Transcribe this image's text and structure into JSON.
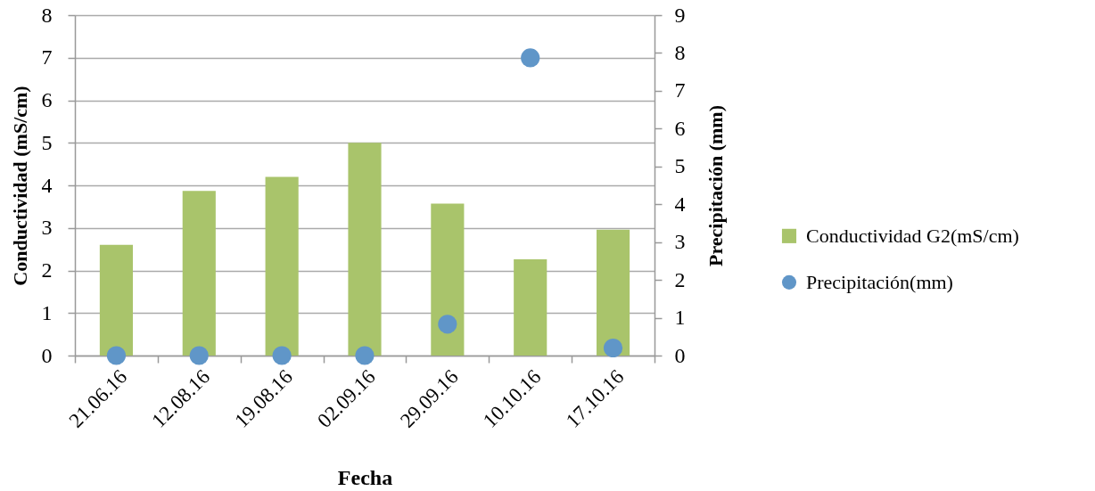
{
  "chart_data": {
    "type": "bar",
    "xlabel": "Fecha",
    "ylabel": "Conductividad (mS/cm)",
    "y2label": "Precipitación (mm)",
    "categories": [
      "21.06.16",
      "12.08.16",
      "19.08.16",
      "02.09.16",
      "29.09.16",
      "10.10.16",
      "17.10.16"
    ],
    "series": [
      {
        "name": "Conductividad G2(mS/cm)",
        "color": "#a9c46b",
        "values": [
          2.6,
          3.87,
          4.2,
          5.0,
          3.57,
          2.26,
          2.96
        ]
      },
      {
        "name": "Precipitación(mm)",
        "type": "scatter",
        "axis": "y2",
        "color": "#6096c8",
        "values": [
          0,
          0,
          0,
          0,
          0.83,
          7.87,
          0.2
        ]
      }
    ],
    "ylim": [
      0,
      8
    ],
    "yticks": [
      0,
      1,
      2,
      3,
      4,
      5,
      6,
      7,
      8
    ],
    "y2lim": [
      0,
      9
    ],
    "y2ticks": [
      0,
      1,
      2,
      3,
      4,
      5,
      6,
      7,
      8,
      9
    ],
    "grid": "y",
    "legend": "right",
    "marker": "circle"
  }
}
